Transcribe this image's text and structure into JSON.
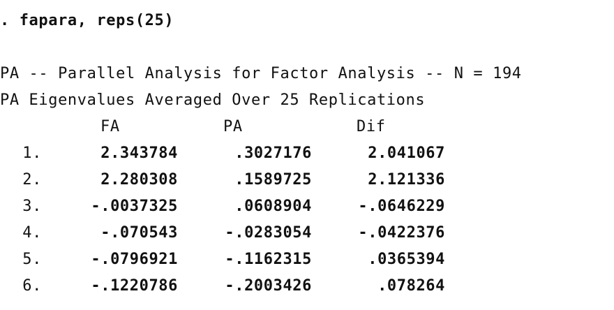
{
  "command": ". fapara, reps(25)",
  "title_line": "PA -- Parallel Analysis for Factor Analysis -- N = 194",
  "subtitle_line": "PA Eigenvalues Averaged Over 25 Replications",
  "columns": [
    "FA",
    "PA",
    "Dif"
  ],
  "rows": [
    {
      "index": "1.",
      "fa": "2.343784",
      "pa": ".3027176",
      "dif": "2.041067"
    },
    {
      "index": "2.",
      "fa": "2.280308",
      "pa": ".1589725",
      "dif": "2.121336"
    },
    {
      "index": "3.",
      "fa": "-.0037325",
      "pa": ".0608904",
      "dif": "-.0646229"
    },
    {
      "index": "4.",
      "fa": "-.070543",
      "pa": "-.0283054",
      "dif": "-.0422376"
    },
    {
      "index": "5.",
      "fa": "-.0796921",
      "pa": "-.1162315",
      "dif": ".0365394"
    },
    {
      "index": "6.",
      "fa": "-.1220786",
      "pa": "-.2003426",
      "dif": ".078264"
    }
  ]
}
